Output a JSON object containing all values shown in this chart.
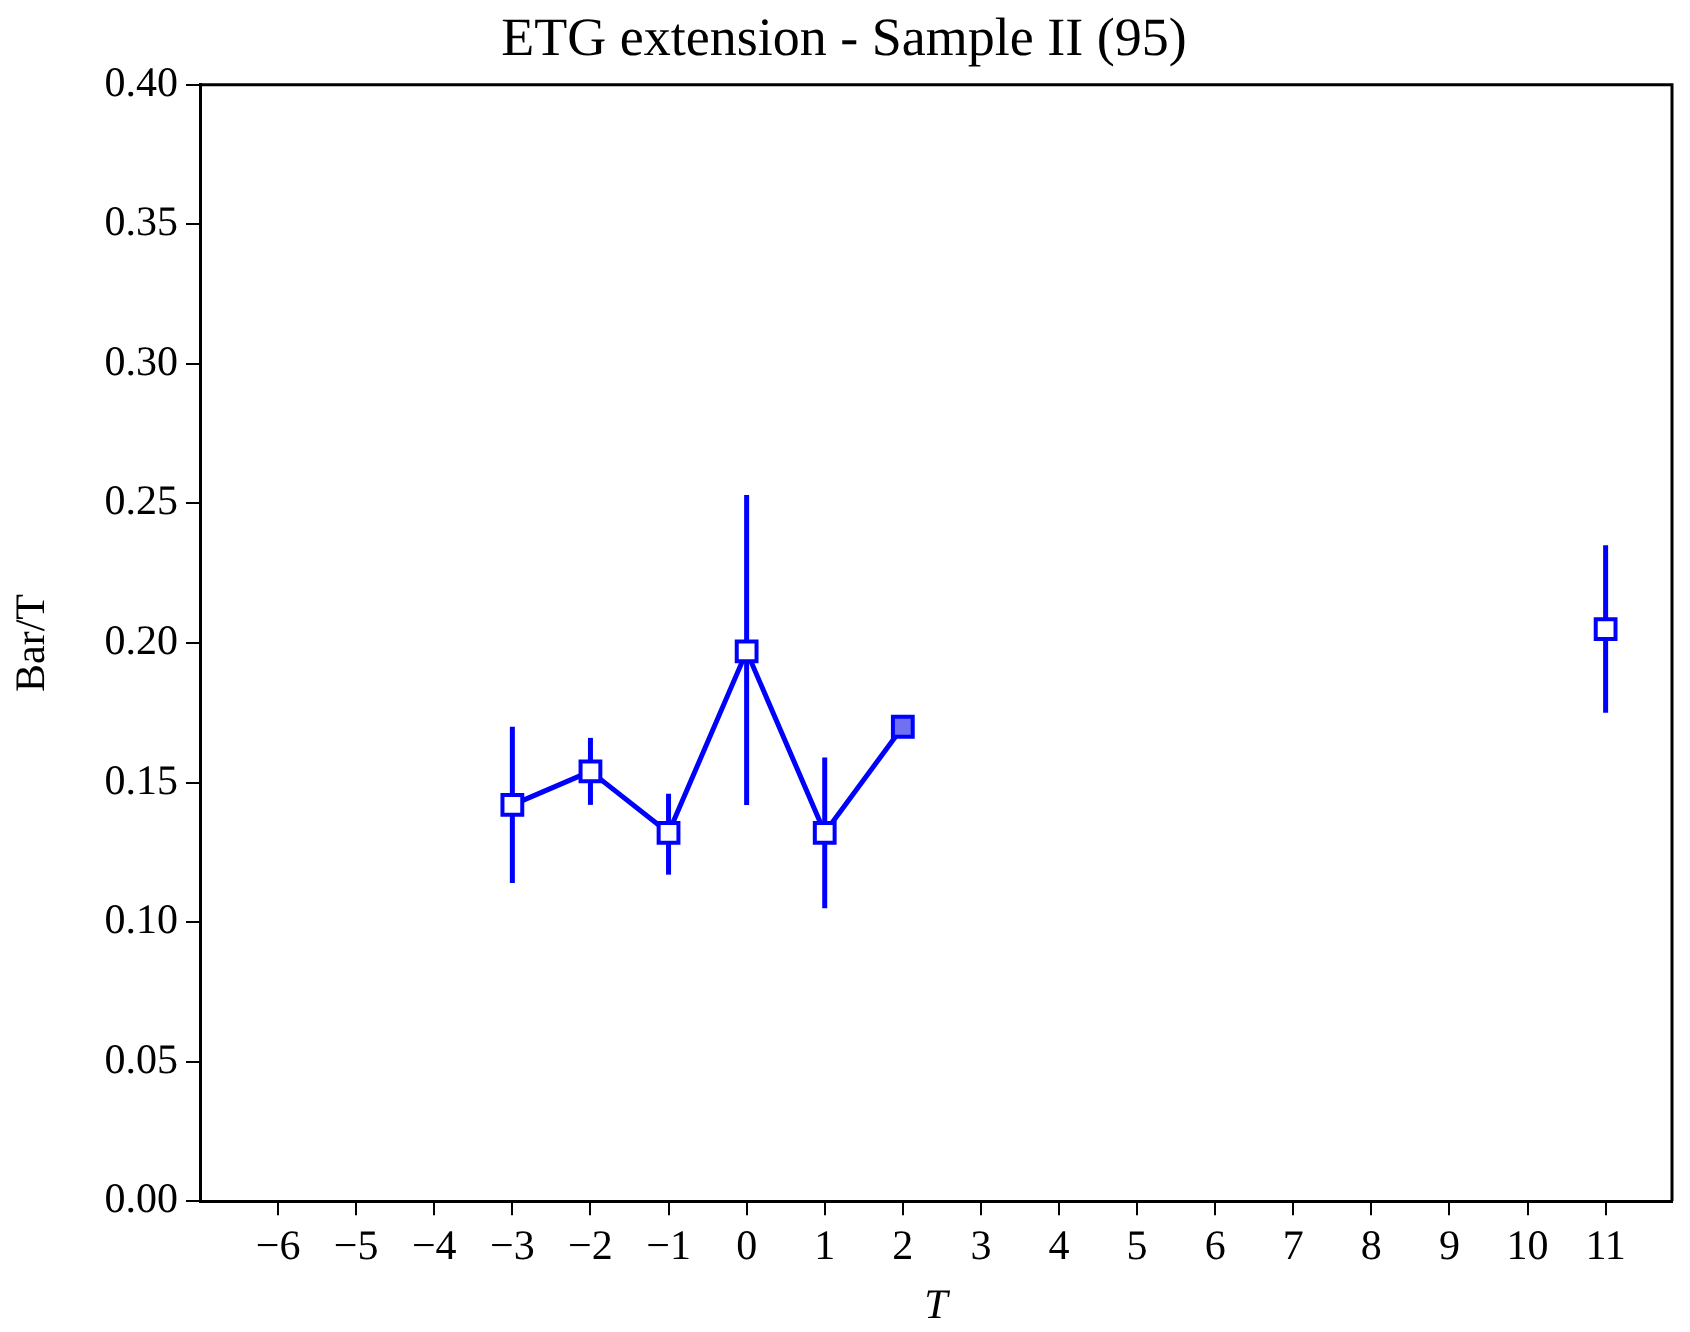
{
  "chart_data": {
    "type": "line",
    "title": "ETG extension - Sample II (95)",
    "xlabel": "T",
    "ylabel": "Bar/T",
    "xlim": [
      -7,
      11.85
    ],
    "ylim": [
      0,
      0.4
    ],
    "xticks": [
      {
        "value": -6,
        "label": "−6"
      },
      {
        "value": -5,
        "label": "−5"
      },
      {
        "value": -4,
        "label": "−4"
      },
      {
        "value": -3,
        "label": "−3"
      },
      {
        "value": -2,
        "label": "−2"
      },
      {
        "value": -1,
        "label": "−1"
      },
      0,
      1,
      2,
      3,
      4,
      5,
      6,
      7,
      8,
      9,
      10,
      11
    ],
    "yticks": [
      {
        "value": 0,
        "label": "0.00"
      },
      {
        "value": 0.05,
        "label": "0.05"
      },
      {
        "value": 0.1,
        "label": "0.10"
      },
      {
        "value": 0.15,
        "label": "0.15"
      },
      {
        "value": 0.2,
        "label": "0.20"
      },
      {
        "value": 0.25,
        "label": "0.25"
      },
      {
        "value": 0.3,
        "label": "0.30"
      },
      {
        "value": 0.35,
        "label": "0.35"
      },
      {
        "value": 0.4,
        "label": "0.40"
      }
    ],
    "grid": false,
    "legend": false,
    "marker": "square",
    "line_style": "solid",
    "series": [
      {
        "type": "line",
        "color": "#0000ff",
        "x": [
          -3,
          -2,
          -1,
          0,
          1,
          2
        ],
        "values": [
          0.142,
          0.154,
          0.132,
          0.197,
          0.132,
          0.17
        ],
        "colors": [
          "#ffffff",
          "#ffffff",
          "#ffffff",
          "#ffffff",
          "#ffffff",
          "#7070f0"
        ],
        "errors": [
          [
            0.114,
            0.17
          ],
          [
            0.142,
            0.166
          ],
          [
            0.117,
            0.146
          ],
          [
            0.142,
            0.253
          ],
          [
            0.105,
            0.159
          ],
          null
        ]
      },
      {
        "type": "scatter",
        "color": "#0000ff",
        "x": [
          11
        ],
        "values": [
          0.205
        ],
        "colors": [
          "#ffffff"
        ],
        "errors": [
          [
            0.175,
            0.235
          ]
        ]
      }
    ]
  }
}
